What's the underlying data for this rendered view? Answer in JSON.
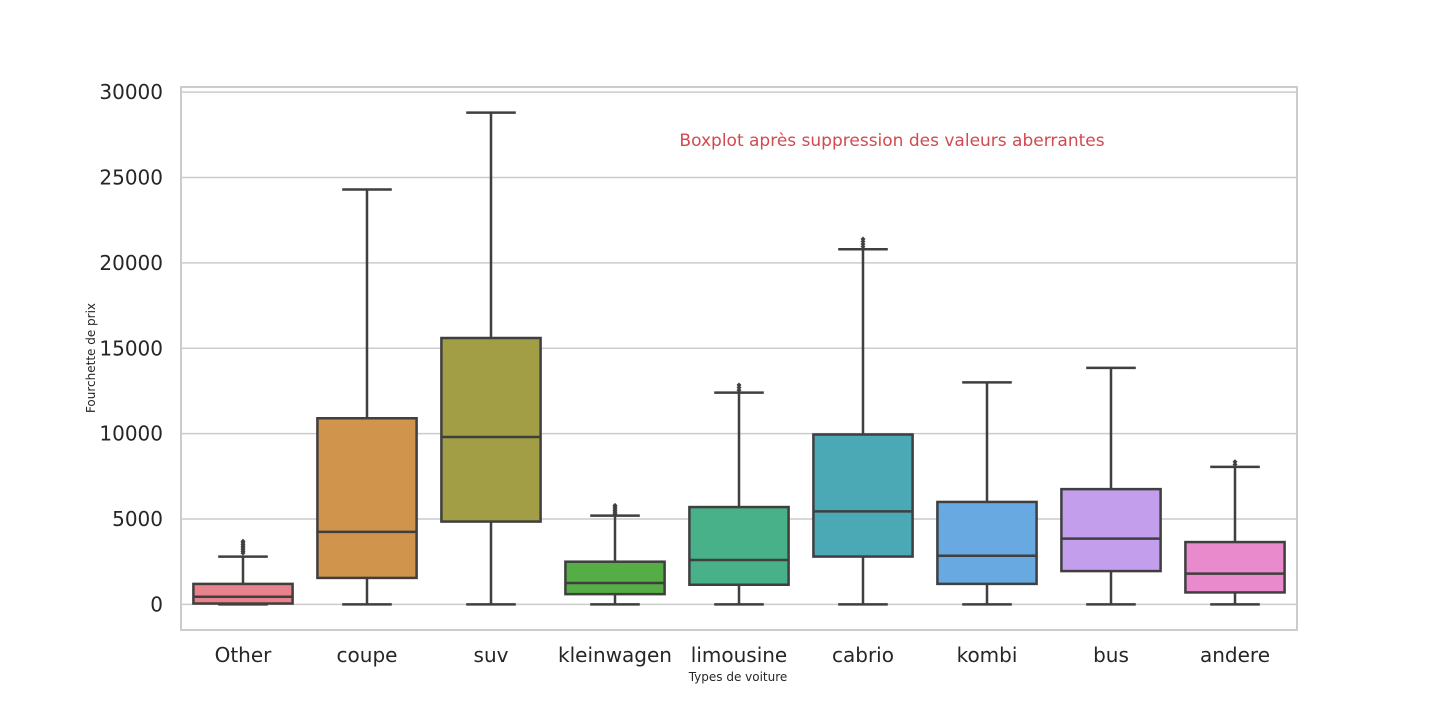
{
  "chart_data": {
    "type": "boxplot",
    "annotation": "Boxplot après suppression des valeurs aberrantes",
    "xlabel": "Types de voiture",
    "ylabel": "Fourchette de prix",
    "ylim": [
      -1500,
      30300
    ],
    "yticks": [
      0,
      5000,
      10000,
      15000,
      20000,
      25000,
      30000
    ],
    "grid": true,
    "categories": [
      "Other",
      "coupe",
      "suv",
      "kleinwagen",
      "limousine",
      "cabrio",
      "kombi",
      "bus",
      "andere"
    ],
    "boxes": [
      {
        "category": "Other",
        "whisker_low": 0,
        "q1": 50,
        "median": 450,
        "q3": 1200,
        "whisker_high": 2800,
        "fliers": [
          3000,
          3100,
          3200,
          3300,
          3400,
          3500,
          3600,
          3700
        ],
        "color": "#e8838d"
      },
      {
        "category": "coupe",
        "whisker_low": 0,
        "q1": 1550,
        "median": 4250,
        "q3": 10900,
        "whisker_high": 24300,
        "fliers": [],
        "color": "#d1944d"
      },
      {
        "category": "suv",
        "whisker_low": 0,
        "q1": 4850,
        "median": 9800,
        "q3": 15600,
        "whisker_high": 28800,
        "fliers": [],
        "color": "#a19e45"
      },
      {
        "category": "kleinwagen",
        "whisker_low": 0,
        "q1": 600,
        "median": 1250,
        "q3": 2500,
        "whisker_high": 5200,
        "fliers": [
          5300,
          5400,
          5500,
          5600,
          5700,
          5800
        ],
        "color": "#55ad45"
      },
      {
        "category": "limousine",
        "whisker_low": 0,
        "q1": 1150,
        "median": 2600,
        "q3": 5700,
        "whisker_high": 12400,
        "fliers": [
          12550,
          12700,
          12850
        ],
        "color": "#49b18a"
      },
      {
        "category": "cabrio",
        "whisker_low": 0,
        "q1": 2800,
        "median": 5450,
        "q3": 9950,
        "whisker_high": 20800,
        "fliers": [
          20950,
          21100,
          21250,
          21400
        ],
        "color": "#4aa9b4"
      },
      {
        "category": "kombi",
        "whisker_low": 0,
        "q1": 1200,
        "median": 2850,
        "q3": 6000,
        "whisker_high": 13000,
        "fliers": [],
        "color": "#67a9e0"
      },
      {
        "category": "bus",
        "whisker_low": 0,
        "q1": 1950,
        "median": 3850,
        "q3": 6750,
        "whisker_high": 13850,
        "fliers": [],
        "color": "#c39eed"
      },
      {
        "category": "andere",
        "whisker_low": 0,
        "q1": 700,
        "median": 1800,
        "q3": 3650,
        "whisker_high": 8050,
        "fliers": [
          8200,
          8350
        ],
        "color": "#e98acc"
      }
    ]
  }
}
